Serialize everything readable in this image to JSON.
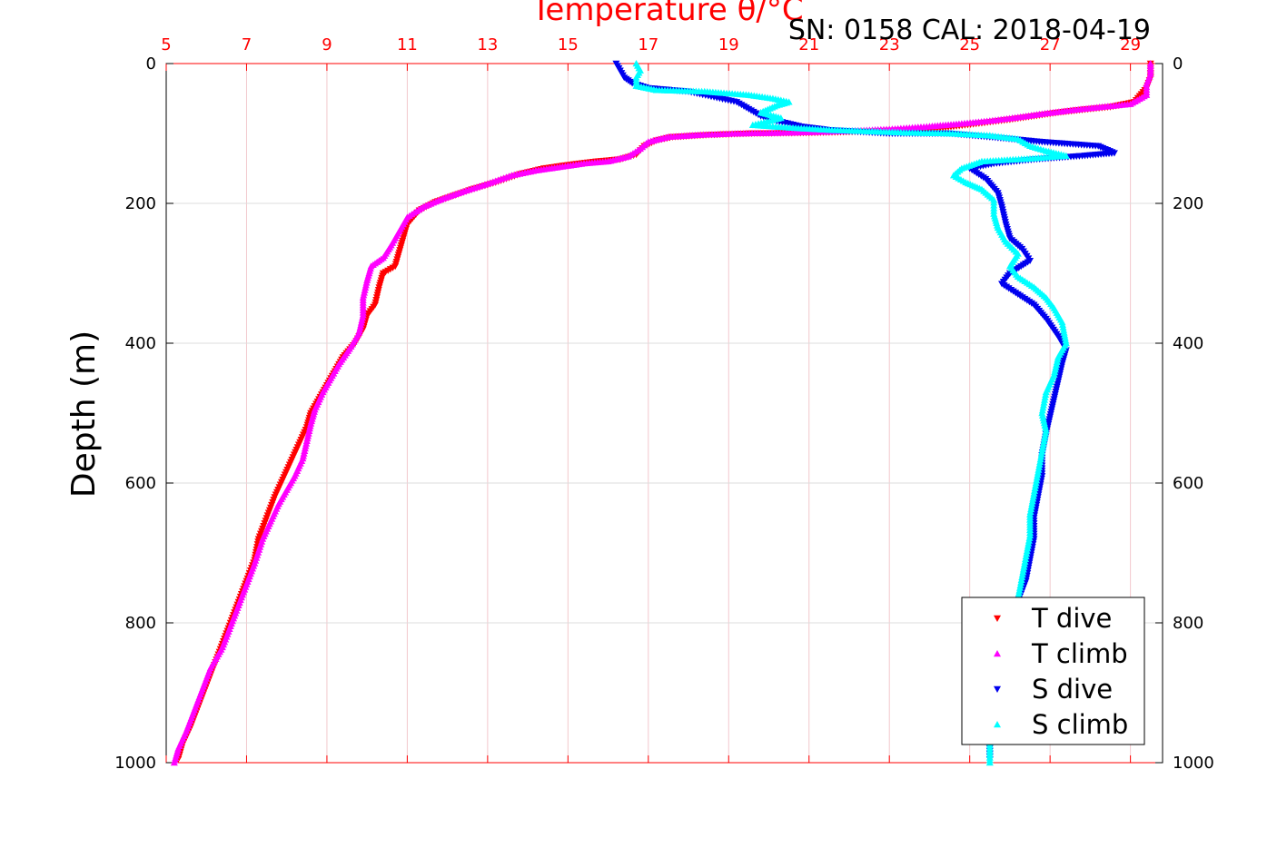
{
  "chart_data": {
    "type": "scatter",
    "title": "Temperature θ/°C",
    "subtitle": "SN: 0158  CAL: 2018-04-19",
    "xlabel": "Temperature θ/°C",
    "ylabel": "Depth (m)",
    "xlim": [
      5,
      29.8
    ],
    "ylim": [
      1000,
      0
    ],
    "x_ticks": [
      5,
      7,
      9,
      11,
      13,
      15,
      17,
      19,
      21,
      23,
      25,
      27,
      29
    ],
    "y_ticks": [
      0,
      200,
      400,
      600,
      800,
      1000
    ],
    "grid": true,
    "legend_position": "bottom-right",
    "colors": {
      "T_dive": "#ff0000",
      "T_climb": "#ff00ff",
      "S_dive": "#0000ee",
      "S_climb": "#00ffff",
      "axis_top": "#ff0000"
    },
    "series": [
      {
        "name": "T dive",
        "marker": "triangle-down",
        "color": "#ff0000",
        "points": [
          [
            29.5,
            0
          ],
          [
            29.5,
            10
          ],
          [
            29.5,
            20
          ],
          [
            29.4,
            35
          ],
          [
            29.1,
            55
          ],
          [
            28.5,
            62
          ],
          [
            27.8,
            66
          ],
          [
            27.2,
            70
          ],
          [
            26.6,
            75
          ],
          [
            26.0,
            80
          ],
          [
            25.3,
            85
          ],
          [
            24.6,
            90
          ],
          [
            23.8,
            94
          ],
          [
            22.5,
            97
          ],
          [
            21.0,
            99
          ],
          [
            19.5,
            100
          ],
          [
            18.5,
            102
          ],
          [
            17.6,
            105
          ],
          [
            17.2,
            110
          ],
          [
            16.9,
            118
          ],
          [
            16.7,
            130
          ],
          [
            16.3,
            137
          ],
          [
            15.7,
            140
          ],
          [
            15.0,
            145
          ],
          [
            14.4,
            150
          ],
          [
            13.8,
            158
          ],
          [
            13.2,
            170
          ],
          [
            12.6,
            180
          ],
          [
            12.2,
            188
          ],
          [
            11.7,
            198
          ],
          [
            11.3,
            210
          ],
          [
            11.0,
            230
          ],
          [
            10.9,
            250
          ],
          [
            10.8,
            270
          ],
          [
            10.7,
            290
          ],
          [
            10.4,
            300
          ],
          [
            10.3,
            320
          ],
          [
            10.2,
            345
          ],
          [
            10.0,
            360
          ],
          [
            9.9,
            380
          ],
          [
            9.7,
            400
          ],
          [
            9.4,
            420
          ],
          [
            9.2,
            440
          ],
          [
            9.0,
            460
          ],
          [
            8.8,
            480
          ],
          [
            8.6,
            500
          ],
          [
            8.5,
            520
          ],
          [
            8.3,
            545
          ],
          [
            8.1,
            570
          ],
          [
            7.9,
            595
          ],
          [
            7.7,
            620
          ],
          [
            7.5,
            650
          ],
          [
            7.3,
            680
          ],
          [
            7.2,
            710
          ],
          [
            7.0,
            740
          ],
          [
            6.8,
            770
          ],
          [
            6.6,
            800
          ],
          [
            6.4,
            830
          ],
          [
            6.2,
            860
          ],
          [
            6.0,
            890
          ],
          [
            5.8,
            920
          ],
          [
            5.6,
            950
          ],
          [
            5.4,
            975
          ],
          [
            5.3,
            995
          ]
        ]
      },
      {
        "name": "T climb",
        "marker": "triangle-up",
        "color": "#ff00ff",
        "points": [
          [
            29.5,
            0
          ],
          [
            29.5,
            15
          ],
          [
            29.4,
            30
          ],
          [
            29.4,
            45
          ],
          [
            29.0,
            58
          ],
          [
            28.3,
            62
          ],
          [
            27.5,
            67
          ],
          [
            26.8,
            72
          ],
          [
            26.2,
            77
          ],
          [
            25.5,
            82
          ],
          [
            24.8,
            86
          ],
          [
            24.0,
            90
          ],
          [
            23.0,
            94
          ],
          [
            21.8,
            97
          ],
          [
            20.5,
            99
          ],
          [
            19.3,
            100
          ],
          [
            18.3,
            102
          ],
          [
            17.5,
            105
          ],
          [
            17.0,
            112
          ],
          [
            16.8,
            122
          ],
          [
            16.5,
            133
          ],
          [
            16.0,
            140
          ],
          [
            15.4,
            143
          ],
          [
            14.8,
            148
          ],
          [
            14.2,
            153
          ],
          [
            13.6,
            160
          ],
          [
            13.0,
            172
          ],
          [
            12.4,
            183
          ],
          [
            11.9,
            193
          ],
          [
            11.4,
            205
          ],
          [
            11.0,
            220
          ],
          [
            10.8,
            240
          ],
          [
            10.6,
            260
          ],
          [
            10.4,
            278
          ],
          [
            10.1,
            290
          ],
          [
            10.0,
            310
          ],
          [
            9.9,
            335
          ],
          [
            9.9,
            360
          ],
          [
            9.8,
            385
          ],
          [
            9.6,
            405
          ],
          [
            9.3,
            430
          ],
          [
            9.1,
            450
          ],
          [
            8.9,
            470
          ],
          [
            8.7,
            495
          ],
          [
            8.6,
            515
          ],
          [
            8.5,
            540
          ],
          [
            8.4,
            565
          ],
          [
            8.2,
            590
          ],
          [
            8.0,
            610
          ],
          [
            7.8,
            630
          ],
          [
            7.6,
            655
          ],
          [
            7.4,
            680
          ],
          [
            7.2,
            715
          ],
          [
            7.0,
            745
          ],
          [
            6.8,
            775
          ],
          [
            6.6,
            805
          ],
          [
            6.4,
            835
          ],
          [
            6.1,
            865
          ],
          [
            5.9,
            895
          ],
          [
            5.7,
            925
          ],
          [
            5.5,
            955
          ],
          [
            5.3,
            980
          ],
          [
            5.2,
            1000
          ]
        ]
      },
      {
        "name": "S dive",
        "marker": "triangle-down",
        "color": "#0000ee",
        "points": [
          [
            16.2,
            0
          ],
          [
            16.3,
            10
          ],
          [
            16.4,
            20
          ],
          [
            16.6,
            28
          ],
          [
            17.0,
            35
          ],
          [
            18.0,
            40
          ],
          [
            19.2,
            55
          ],
          [
            19.5,
            65
          ],
          [
            19.8,
            75
          ],
          [
            20.2,
            82
          ],
          [
            20.8,
            90
          ],
          [
            21.5,
            95
          ],
          [
            23.0,
            100
          ],
          [
            24.5,
            100
          ],
          [
            25.5,
            105
          ],
          [
            26.8,
            112
          ],
          [
            27.5,
            115
          ],
          [
            28.2,
            118
          ],
          [
            28.6,
            128
          ],
          [
            27.8,
            132
          ],
          [
            26.6,
            137
          ],
          [
            25.6,
            143
          ],
          [
            25.0,
            150
          ],
          [
            25.4,
            165
          ],
          [
            25.7,
            185
          ],
          [
            25.8,
            205
          ],
          [
            25.9,
            230
          ],
          [
            26.0,
            250
          ],
          [
            26.3,
            265
          ],
          [
            26.5,
            282
          ],
          [
            26.0,
            300
          ],
          [
            25.8,
            315
          ],
          [
            26.2,
            330
          ],
          [
            26.6,
            345
          ],
          [
            26.9,
            365
          ],
          [
            27.2,
            390
          ],
          [
            27.4,
            410
          ],
          [
            27.3,
            430
          ],
          [
            27.2,
            455
          ],
          [
            27.1,
            480
          ],
          [
            27.0,
            505
          ],
          [
            26.9,
            530
          ],
          [
            26.8,
            560
          ],
          [
            26.8,
            590
          ],
          [
            26.7,
            620
          ],
          [
            26.6,
            650
          ],
          [
            26.6,
            680
          ],
          [
            26.5,
            710
          ],
          [
            26.4,
            740
          ],
          [
            26.2,
            770
          ],
          [
            26.1,
            800
          ],
          [
            26.0,
            830
          ],
          [
            25.9,
            860
          ],
          [
            25.8,
            890
          ],
          [
            25.7,
            920
          ],
          [
            25.6,
            950
          ],
          [
            25.5,
            975
          ],
          [
            25.5,
            995
          ]
        ]
      },
      {
        "name": "S climb",
        "marker": "triangle-up",
        "color": "#00ffff",
        "points": [
          [
            16.7,
            0
          ],
          [
            16.8,
            10
          ],
          [
            16.7,
            20
          ],
          [
            16.7,
            32
          ],
          [
            17.2,
            38
          ],
          [
            18.4,
            40
          ],
          [
            19.5,
            45
          ],
          [
            20.1,
            50
          ],
          [
            20.5,
            55
          ],
          [
            20.2,
            60
          ],
          [
            19.8,
            70
          ],
          [
            20.3,
            78
          ],
          [
            19.6,
            88
          ],
          [
            20.6,
            92
          ],
          [
            21.5,
            95
          ],
          [
            22.5,
            97
          ],
          [
            23.5,
            99
          ],
          [
            24.5,
            100
          ],
          [
            25.5,
            103
          ],
          [
            26.2,
            108
          ],
          [
            26.5,
            118
          ],
          [
            26.9,
            125
          ],
          [
            27.4,
            132
          ],
          [
            26.5,
            136
          ],
          [
            25.3,
            140
          ],
          [
            24.8,
            150
          ],
          [
            24.6,
            160
          ],
          [
            24.9,
            170
          ],
          [
            25.3,
            180
          ],
          [
            25.6,
            195
          ],
          [
            25.6,
            215
          ],
          [
            25.7,
            235
          ],
          [
            25.9,
            255
          ],
          [
            26.2,
            272
          ],
          [
            26.0,
            290
          ],
          [
            26.2,
            305
          ],
          [
            26.6,
            320
          ],
          [
            26.9,
            335
          ],
          [
            27.1,
            350
          ],
          [
            27.3,
            370
          ],
          [
            27.4,
            400
          ],
          [
            27.2,
            420
          ],
          [
            27.1,
            445
          ],
          [
            26.9,
            470
          ],
          [
            26.8,
            500
          ],
          [
            26.9,
            525
          ],
          [
            26.8,
            555
          ],
          [
            26.7,
            585
          ],
          [
            26.6,
            615
          ],
          [
            26.5,
            645
          ],
          [
            26.5,
            675
          ],
          [
            26.4,
            705
          ],
          [
            26.3,
            735
          ],
          [
            26.2,
            765
          ],
          [
            26.0,
            795
          ],
          [
            25.9,
            825
          ],
          [
            25.8,
            855
          ],
          [
            25.7,
            885
          ],
          [
            25.6,
            915
          ],
          [
            25.5,
            945
          ],
          [
            25.5,
            975
          ],
          [
            25.5,
            1000
          ]
        ]
      }
    ]
  }
}
